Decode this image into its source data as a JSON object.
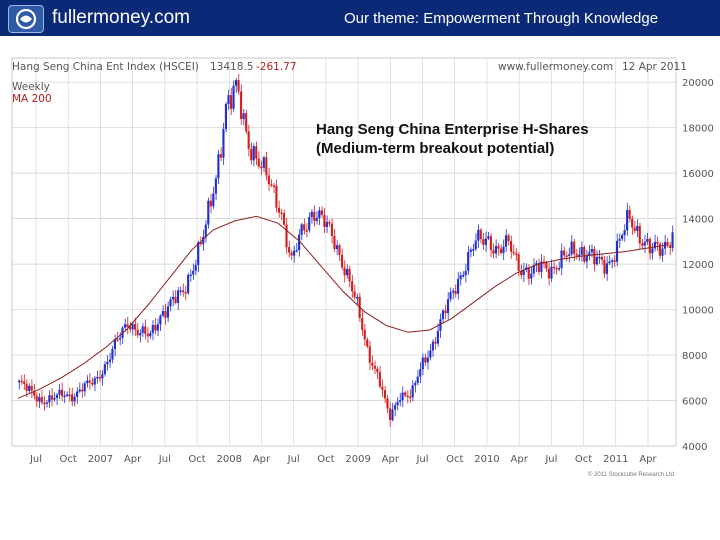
{
  "banner": {
    "site": "fullermoney.com",
    "theme": "Our theme: Empowerment Through Knowledge",
    "bg_color": "#0a2a78"
  },
  "chart_header": {
    "title": "Hang Seng China Ent Index (HSCEI)",
    "value": "13418.5",
    "change": "-261.77",
    "source": "www.fullermoney.com",
    "date": "12 Apr 2011",
    "frequency": "Weekly",
    "ma_label": "MA 200"
  },
  "overlay": {
    "line1": "Hang Seng China Enterprise H-Shares",
    "line2": "(Medium-term breakout potential)"
  },
  "copyright": "© 2011 Stockcube Research Ltd",
  "chart_data": {
    "type": "candlestick",
    "colors": {
      "up": "#1f2fd0",
      "down": "#d41e1e",
      "ma": "#8a2020",
      "grid": "#cfcfcf"
    },
    "y_ticks": [
      4000,
      6000,
      8000,
      10000,
      12000,
      14000,
      16000,
      18000,
      20000
    ],
    "y_tick_labels": [
      "4000",
      "6000",
      "8000",
      "10000",
      "12000",
      "14000",
      "16000",
      "18000",
      "20000"
    ],
    "ylim": [
      4000,
      20800
    ],
    "y_axis_side": "right",
    "x_labels": [
      "Jul",
      "Oct",
      "2007",
      "Apr",
      "Jul",
      "Oct",
      "2008",
      "Apr",
      "Jul",
      "Oct",
      "2009",
      "Apr",
      "Jul",
      "Oct",
      "2010",
      "Apr",
      "Jul",
      "Oct",
      "2011",
      "Apr"
    ],
    "x_start": "2006-06",
    "x_end": "2011-04",
    "grid": true,
    "weekly_close": [
      6800,
      6400,
      6000,
      6050,
      6300,
      6200,
      6600,
      6900,
      7600,
      8600,
      9500,
      9000,
      8800,
      9800,
      10300,
      10700,
      12000,
      13300,
      15600,
      19000,
      19600,
      17500,
      16500,
      15500,
      14500,
      12000,
      13500,
      14400,
      13800,
      13000,
      11700,
      10200,
      8200,
      7000,
      5200,
      6300,
      6200,
      7600,
      8500,
      9800,
      11000,
      12000,
      13000,
      13200,
      12500,
      12900,
      11900,
      11500,
      12000,
      11800,
      12200,
      12700,
      12500,
      12100,
      12000,
      12800,
      14000,
      13300,
      12600,
      12600,
      13400
    ],
    "ma200": [
      6100,
      6500,
      7000,
      7600,
      8300,
      9100,
      10200,
      11400,
      12600,
      13500,
      13900,
      14100,
      13800,
      13000,
      11900,
      10800,
      9900,
      9300,
      9000,
      9100,
      9600,
      10300,
      11000,
      11600,
      12000,
      12200,
      12350,
      12450,
      12550,
      12700,
      12850
    ]
  }
}
